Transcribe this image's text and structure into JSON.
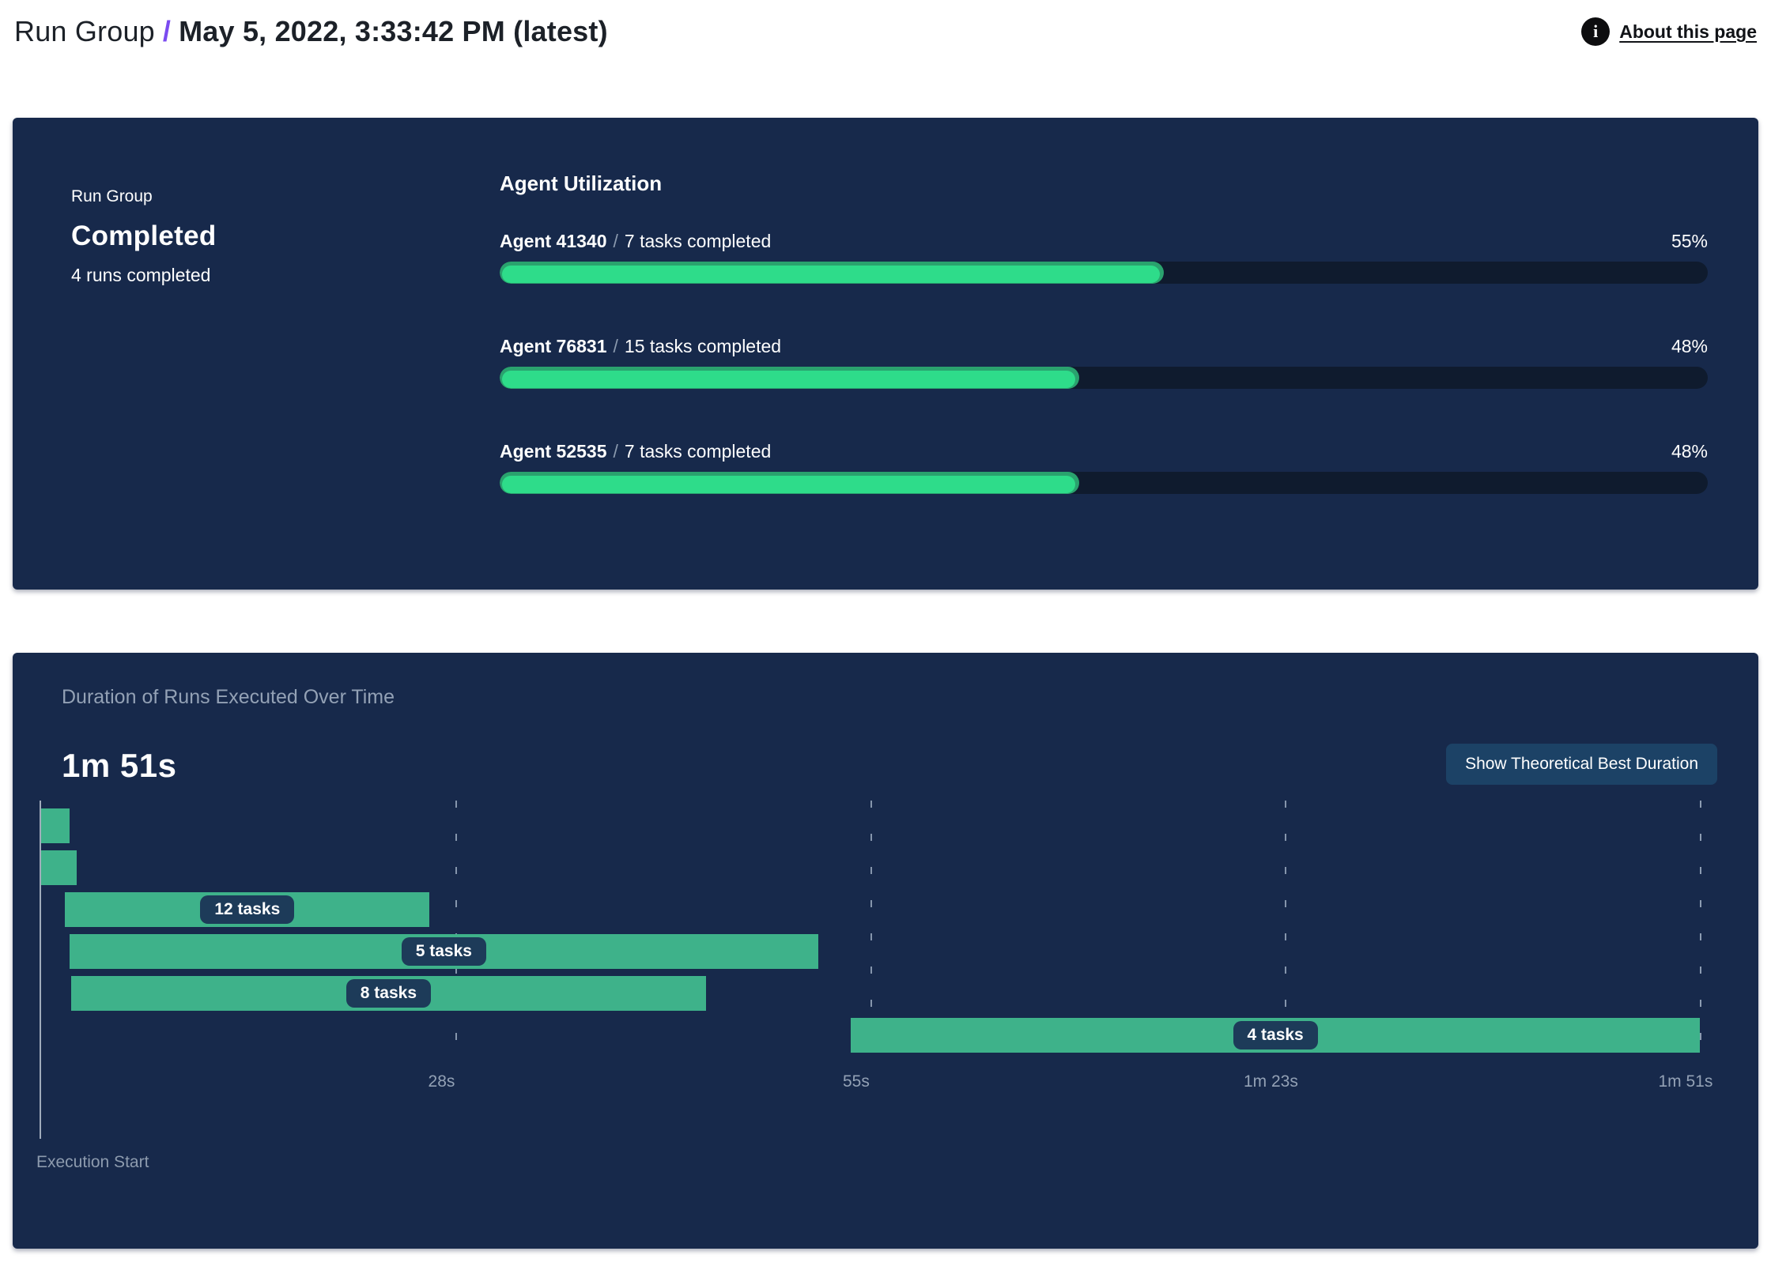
{
  "header": {
    "breadcrumb_root": "Run Group",
    "separator": "/",
    "title": "May 5, 2022, 3:33:42 PM (latest)",
    "about_label": "About this page",
    "info_icon_glyph": "i"
  },
  "status_panel": {
    "kicker": "Run Group",
    "status": "Completed",
    "substatus": "4 runs completed"
  },
  "agent_utilization": {
    "heading": "Agent Utilization",
    "separator": "/",
    "agents": [
      {
        "name": "Agent 41340",
        "tasks": "7 tasks completed",
        "percent_label": "55%",
        "percent_value": 55
      },
      {
        "name": "Agent 76831",
        "tasks": "15 tasks completed",
        "percent_label": "48%",
        "percent_value": 48
      },
      {
        "name": "Agent 52535",
        "tasks": "7 tasks completed",
        "percent_label": "48%",
        "percent_value": 48
      }
    ]
  },
  "duration_panel": {
    "title": "Duration of Runs Executed Over Time",
    "duration_big": "1m 51s",
    "button_label": "Show Theoretical Best Duration",
    "execution_start_label": "Execution Start"
  },
  "chart_data": {
    "type": "gantt",
    "title": "Duration of Runs Executed Over Time",
    "total_duration_label": "1m 51s",
    "x_range_s": [
      0,
      111
    ],
    "x_ticks": [
      {
        "t": 27.75,
        "label": "28s"
      },
      {
        "t": 55.5,
        "label": "55s"
      },
      {
        "t": 83.25,
        "label": "1m 23s"
      },
      {
        "t": 111,
        "label": "1m 51s"
      }
    ],
    "x_axis_label": "Execution Start",
    "runs": [
      {
        "row": 0,
        "start_s": 0,
        "end_s": 1.9,
        "label": ""
      },
      {
        "row": 1,
        "start_s": 0,
        "end_s": 2.4,
        "label": ""
      },
      {
        "row": 2,
        "start_s": 1.6,
        "end_s": 26,
        "label": "12 tasks"
      },
      {
        "row": 3,
        "start_s": 1.9,
        "end_s": 52,
        "label": "5 tasks"
      },
      {
        "row": 4,
        "start_s": 2,
        "end_s": 44.5,
        "label": "8 tasks"
      },
      {
        "row": 5,
        "start_s": 54.2,
        "end_s": 111,
        "label": "4 tasks"
      }
    ],
    "colors": {
      "bar": "#3eb28a",
      "bar_label_pill": "#1d3b59",
      "panel_background": "#17294b",
      "progress_fill": "#2edc8a",
      "progress_fill_rim": "#2aa26e",
      "progress_track": "#0f1b2e",
      "accent_purple": "#7b4bf0"
    }
  }
}
